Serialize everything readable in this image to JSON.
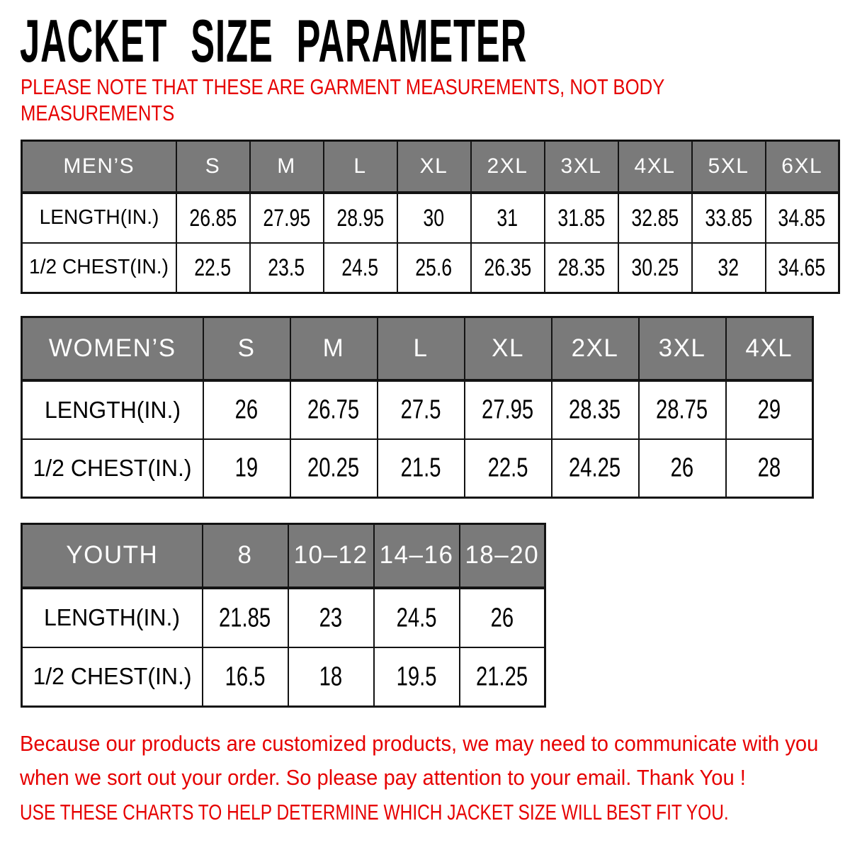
{
  "header": {
    "title": "JACKET SIZE PARAMETER",
    "note_line1": "PLEASE NOTE THAT THESE ARE GARMENT MEASUREMENTS, NOT BODY",
    "note_line2": "MEASUREMENTS"
  },
  "tables": {
    "mens": {
      "header": [
        "MEN’S",
        "S",
        "M",
        "L",
        "XL",
        "2XL",
        "3XL",
        "4XL",
        "5XL",
        "6XL"
      ],
      "rows": [
        {
          "label": "LENGTH(IN.)",
          "values": [
            "26.85",
            "27.95",
            "28.95",
            "30",
            "31",
            "31.85",
            "32.85",
            "33.85",
            "34.85"
          ]
        },
        {
          "label": "1/2 CHEST(IN.)",
          "values": [
            "22.5",
            "23.5",
            "24.5",
            "25.6",
            "26.35",
            "28.35",
            "30.25",
            "32",
            "34.65"
          ]
        }
      ]
    },
    "womens": {
      "header": [
        "WOMEN’S",
        "S",
        "M",
        "L",
        "XL",
        "2XL",
        "3XL",
        "4XL"
      ],
      "rows": [
        {
          "label": "LENGTH(IN.)",
          "values": [
            "26",
            "26.75",
            "27.5",
            "27.95",
            "28.35",
            "28.75",
            "29"
          ]
        },
        {
          "label": "1/2 CHEST(IN.)",
          "values": [
            "19",
            "20.25",
            "21.5",
            "22.5",
            "24.25",
            "26",
            "28"
          ]
        }
      ]
    },
    "youth": {
      "header": [
        "YOUTH",
        "8",
        "10–12",
        "14–16",
        "18–20"
      ],
      "rows": [
        {
          "label": "LENGTH(IN.)",
          "values": [
            "21.85",
            "23",
            "24.5",
            "26"
          ]
        },
        {
          "label": "1/2 CHEST(IN.)",
          "values": [
            "16.5",
            "18",
            "19.5",
            "21.25"
          ]
        }
      ]
    }
  },
  "footer": {
    "paragraph_line1": "Because our products are customized products, we may need to communicate with you",
    "paragraph_line2": "when we sort out your order. So please pay attention to your email. Thank You !",
    "tip": "USE THESE CHARTS TO HELP DETERMINE WHICH JACKET SIZE WILL BEST FIT YOU."
  },
  "colors": {
    "accent_red": "#e60000",
    "table_header_gray": "#7a7a7a",
    "table_border_black": "#131313",
    "header_text_white": "#ffffff",
    "body_text_black": "#000000"
  }
}
